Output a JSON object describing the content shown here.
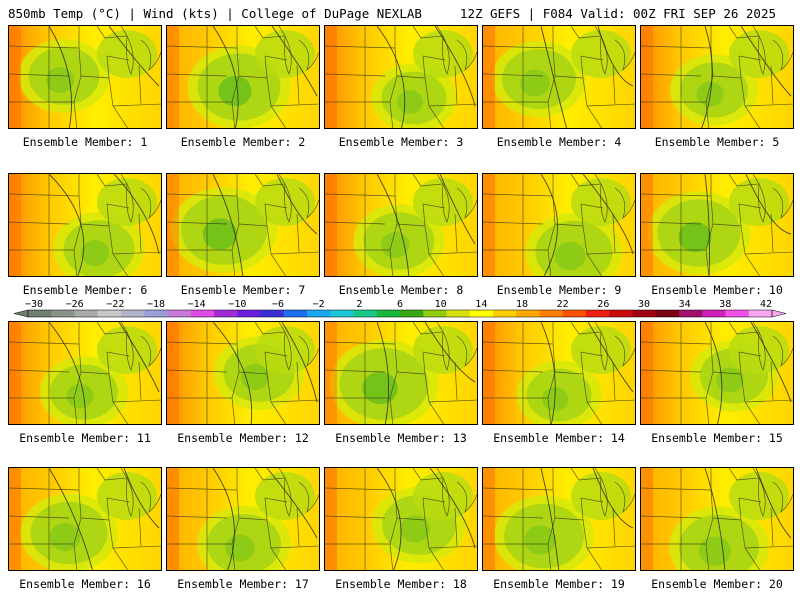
{
  "header": {
    "left_title": "850mb Temp (°C) | Wind (kts) | College of DuPage NEXLAB",
    "right_title": "12Z GEFS | F084 Valid: 00Z FRI SEP 26 2025"
  },
  "members": [
    {
      "label": "Ensemble Member: 1",
      "warmth": 0.55
    },
    {
      "label": "Ensemble Member: 2",
      "warmth": 0.35
    },
    {
      "label": "Ensemble Member: 3",
      "warmth": 0.65
    },
    {
      "label": "Ensemble Member: 4",
      "warmth": 0.5
    },
    {
      "label": "Ensemble Member: 5",
      "warmth": 0.6
    },
    {
      "label": "Ensemble Member: 6",
      "warmth": 0.55
    },
    {
      "label": "Ensemble Member: 7",
      "warmth": 0.3
    },
    {
      "label": "Ensemble Member: 8",
      "warmth": 0.55
    },
    {
      "label": "Ensemble Member: 9",
      "warmth": 0.45
    },
    {
      "label": "Ensemble Member: 10",
      "warmth": 0.35
    },
    {
      "label": "Ensemble Member: 11",
      "warmth": 0.6
    },
    {
      "label": "Ensemble Member: 12",
      "warmth": 0.55
    },
    {
      "label": "Ensemble Member: 13",
      "warmth": 0.25
    },
    {
      "label": "Ensemble Member: 14",
      "warmth": 0.65
    },
    {
      "label": "Ensemble Member: 15",
      "warmth": 0.6
    },
    {
      "label": "Ensemble Member: 16",
      "warmth": 0.45
    },
    {
      "label": "Ensemble Member: 17",
      "warmth": 0.5
    },
    {
      "label": "Ensemble Member: 18",
      "warmth": 0.5
    },
    {
      "label": "Ensemble Member: 19",
      "warmth": 0.4
    },
    {
      "label": "Ensemble Member: 20",
      "warmth": 0.4
    }
  ],
  "colorbar": {
    "ticks": [
      "−30",
      "−26",
      "−22",
      "−18",
      "−14",
      "−10",
      "−6",
      "−2",
      "2",
      "6",
      "10",
      "14",
      "18",
      "22",
      "26",
      "30",
      "34",
      "38",
      "42"
    ],
    "colors": [
      "#6f7f70",
      "#8a938a",
      "#a8aca7",
      "#c8c8c8",
      "#b0b4c8",
      "#9aa0d6",
      "#c87ad8",
      "#e04ce6",
      "#a02cd8",
      "#6a1ee0",
      "#3a2ed8",
      "#1e6ef0",
      "#1aa8f0",
      "#18c8d8",
      "#18c888",
      "#18b838",
      "#3aa814",
      "#90cc10",
      "#d8e010",
      "#ffff00",
      "#ffd000",
      "#ffa800",
      "#ff8000",
      "#ff5000",
      "#f02010",
      "#c80c0c",
      "#a00010",
      "#780010",
      "#a0106c",
      "#d020b8",
      "#f050e8",
      "#f8a8f0"
    ]
  }
}
